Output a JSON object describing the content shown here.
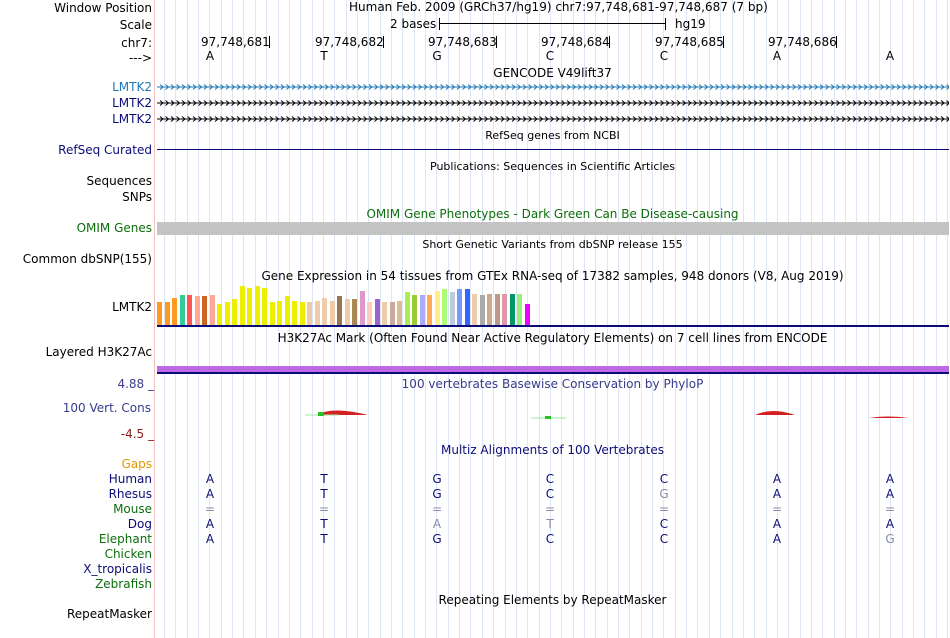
{
  "header": {
    "window_position_label": "Window Position",
    "scale_label": "Scale",
    "chrom_label": "chr7:",
    "strand_label": "--->",
    "assembly_text": "Human Feb. 2009 (GRCh37/hg19)   chr7:97,748,681-97,748,687 (7 bp)",
    "scale_text": "2 bases",
    "scale_db": "hg19",
    "positions": [
      "97,748,681",
      "97,748,682",
      "97,748,683",
      "97,748,684",
      "97,748,685",
      "97,748,686"
    ],
    "bases": [
      "A",
      "T",
      "G",
      "C",
      "C",
      "A",
      "A"
    ]
  },
  "tracks": {
    "gencode": {
      "title": "GENCODE V49lift37",
      "labels": [
        "LMTK2",
        "LMTK2",
        "LMTK2"
      ]
    },
    "refseq": {
      "title": "RefSeq genes from NCBI",
      "label": "RefSeq Curated"
    },
    "publications": {
      "title": "Publications: Sequences in Scientific Articles",
      "labels": [
        "Sequences",
        "SNPs"
      ]
    },
    "omim": {
      "title": "OMIM Gene Phenotypes - Dark Green Can Be Disease-causing",
      "label": "OMIM Genes"
    },
    "dbsnp": {
      "title": "Short Genetic Variants from dbSNP release 155",
      "label": "Common dbSNP(155)"
    },
    "gtex": {
      "title": "Gene Expression in 54 tissues from GTEx RNA-seq of 17382 samples, 948 donors (V8, Aug 2019)",
      "label": "LMTK2",
      "colors": [
        "#ff9922",
        "#ff9922",
        "#ff9922",
        "#33cc99",
        "#ff5555",
        "#ffaa99",
        "#cc6622",
        "#ffaa99",
        "#eeee00",
        "#eeee00",
        "#eeee00",
        "#eeee00",
        "#eeee00",
        "#eeee00",
        "#eeee00",
        "#eeee00",
        "#eeee00",
        "#eeee00",
        "#eeee00",
        "#eeee00",
        "#eeccaa",
        "#eeccaa",
        "#eeccaa",
        "#eeccaa",
        "#997755",
        "#eeccaa",
        "#aa8855",
        "#dd99cc",
        "#ffccbb",
        "#9966cc",
        "#eeccaa",
        "#ccaa99",
        "#ddbb99",
        "#aaee55",
        "#99cc33",
        "#aaaaff",
        "#ffaa55",
        "#ffee88",
        "#aaff77",
        "#bbccdd",
        "#7799ff",
        "#3366ff",
        "#eeccaa",
        "#aaaaaa",
        "#ccaa88",
        "#bb9988",
        "#dd99aa",
        "#009966",
        "#99ee77",
        "#ee00ff"
      ],
      "values": [
        0.8,
        0.8,
        0.95,
        1.05,
        1.05,
        1.0,
        1.0,
        1.05,
        0.75,
        0.8,
        0.9,
        1.35,
        1.3,
        1.35,
        1.3,
        0.8,
        0.85,
        1.0,
        0.85,
        0.8,
        0.8,
        0.85,
        0.95,
        0.85,
        1.0,
        0.9,
        0.9,
        1.2,
        0.8,
        0.9,
        0.8,
        0.8,
        0.85,
        1.15,
        1.05,
        1.05,
        1.05,
        1.2,
        1.25,
        1.15,
        1.25,
        1.25,
        1.1,
        1.05,
        1.1,
        1.1,
        1.1,
        1.1,
        1.1,
        0.75
      ]
    },
    "h3k27ac": {
      "title": "H3K27Ac Mark (Often Found Near Active Regulatory Elements) on 7 cell lines from ENCODE",
      "label": "Layered H3K27Ac"
    },
    "phylop": {
      "title": "100 vertebrates Basewise Conservation by PhyloP",
      "label": "100 Vert. Cons",
      "max": "4.88 _",
      "min": "-4.5 _"
    },
    "multiz": {
      "title": "Multiz Alignments of 100 Vertebrates",
      "gaps_label": "Gaps",
      "species": [
        {
          "name": "Human",
          "bases": [
            "A",
            "T",
            "G",
            "C",
            "C",
            "A",
            "A"
          ]
        },
        {
          "name": "Rhesus",
          "bases": [
            "A",
            "T",
            "G",
            "C",
            "G",
            "A",
            "A"
          ]
        },
        {
          "name": "Mouse",
          "bases": [
            "=",
            "=",
            "=",
            "=",
            "=",
            "=",
            "="
          ]
        },
        {
          "name": "Dog",
          "bases": [
            "A",
            "T",
            "A",
            "T",
            "C",
            "A",
            "A"
          ]
        },
        {
          "name": "Elephant",
          "bases": [
            "A",
            "T",
            "G",
            "C",
            "C",
            "A",
            "G"
          ]
        },
        {
          "name": "Chicken",
          "bases": []
        },
        {
          "name": "X_tropicalis",
          "bases": []
        },
        {
          "name": "Zebrafish",
          "bases": []
        }
      ]
    },
    "repeatmasker": {
      "title": "Repeating Elements by RepeatMasker",
      "label": "RepeatMasker"
    }
  },
  "colors": {
    "gencode_blue": "#1f78b4",
    "navy": "#0c0c78",
    "omim_green": "#0c6e0c",
    "gaps_orange": "#e09a00",
    "phylop_red": "#8b1a1a",
    "gray_base": "#8a8aa8"
  }
}
